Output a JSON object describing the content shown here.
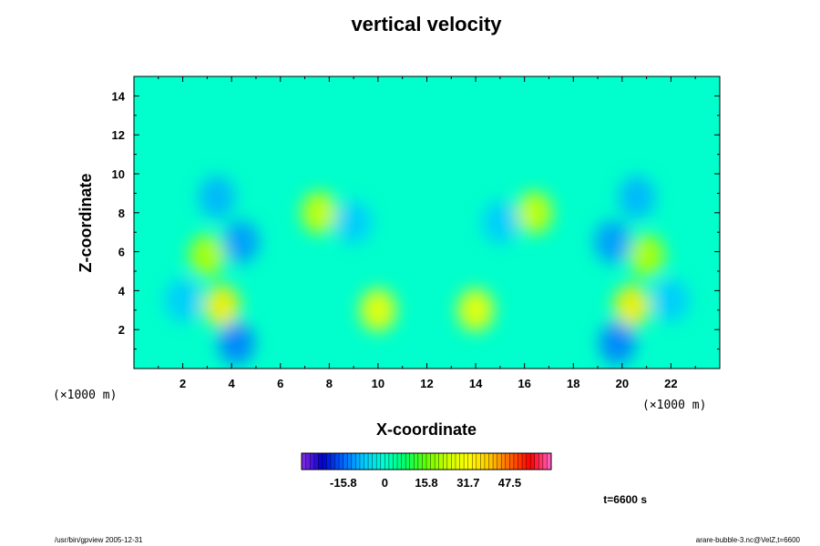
{
  "chart_data": {
    "type": "heatmap",
    "title": "vertical velocity",
    "xlabel": "X-coordinate",
    "ylabel": "Z-coordinate",
    "x_units": "(×1000 m)",
    "y_units": "(×1000 m)",
    "xlim": [
      0,
      24
    ],
    "ylim": [
      0,
      15
    ],
    "x_ticks": [
      2,
      4,
      6,
      8,
      10,
      12,
      14,
      16,
      18,
      20,
      22
    ],
    "y_ticks": [
      2,
      4,
      6,
      8,
      10,
      12,
      14
    ],
    "colorbar": {
      "ticks": [
        "-15.8",
        "0",
        "15.8",
        "31.7",
        "47.5"
      ],
      "tick_values": [
        -15.8,
        0,
        15.8,
        31.7,
        47.5
      ],
      "range": [
        -31.7,
        63.3
      ],
      "colors": [
        "#8a2be2",
        "#0000cd",
        "#0066ff",
        "#00ccff",
        "#00ffcc",
        "#00ff66",
        "#66ff00",
        "#ccff00",
        "#ffff00",
        "#ffcc00",
        "#ff6600",
        "#ff0000",
        "#ff66cc"
      ]
    },
    "features": [
      {
        "x": 3.6,
        "z": 3.2,
        "w": 34.0
      },
      {
        "x": 20.4,
        "z": 3.2,
        "w": 34.0
      },
      {
        "x": 10.0,
        "z": 3.0,
        "w": 30.0
      },
      {
        "x": 14.0,
        "z": 3.0,
        "w": 30.0
      },
      {
        "x": 7.6,
        "z": 8.0,
        "w": 24.0
      },
      {
        "x": 16.4,
        "z": 8.0,
        "w": 24.0
      },
      {
        "x": 3.0,
        "z": 5.8,
        "w": 22.0
      },
      {
        "x": 21.0,
        "z": 5.8,
        "w": 22.0
      },
      {
        "x": 4.2,
        "z": 1.3,
        "w": -14.0
      },
      {
        "x": 19.8,
        "z": 1.3,
        "w": -14.0
      },
      {
        "x": 4.4,
        "z": 6.5,
        "w": -12.0
      },
      {
        "x": 19.6,
        "z": 6.5,
        "w": -12.0
      },
      {
        "x": 3.4,
        "z": 8.8,
        "w": -10.0
      },
      {
        "x": 20.6,
        "z": 8.8,
        "w": -10.0
      },
      {
        "x": 9.0,
        "z": 7.5,
        "w": -8.0
      },
      {
        "x": 15.0,
        "z": 7.5,
        "w": -8.0
      },
      {
        "x": 2.0,
        "z": 3.5,
        "w": -8.0
      },
      {
        "x": 22.0,
        "z": 3.5,
        "w": -8.0
      }
    ]
  },
  "time_label": "t=6600 s",
  "footer_left": "/usr/bin/gpview 2005-12-31",
  "footer_right": "arare-bubble-3.nc@VelZ,t=6600"
}
